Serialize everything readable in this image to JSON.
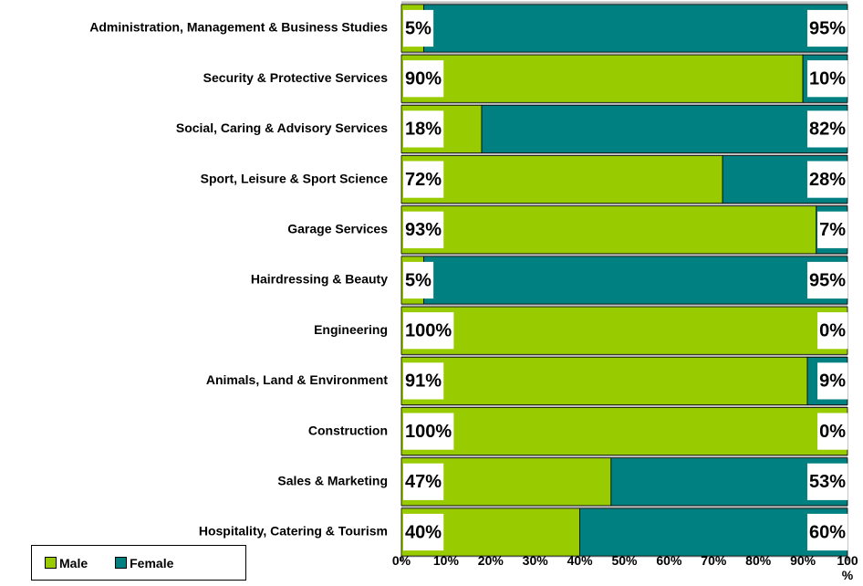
{
  "chart_data": {
    "type": "stacked-bar-horizontal",
    "categories": [
      "Administration, Management  & Business Studies",
      "Security & Protective Services",
      "Social, Caring & Advisory Services",
      "Sport, Leisure & Sport Science",
      "Garage Services",
      "Hairdressing & Beauty",
      "Engineering",
      "Animals, Land & Environment",
      "Construction",
      "Sales & Marketing",
      "Hospitality, Catering & Tourism"
    ],
    "series": [
      {
        "name": "Male",
        "color": "#99cc00",
        "values": [
          5,
          90,
          18,
          72,
          93,
          5,
          100,
          91,
          100,
          47,
          40
        ],
        "value_labels": [
          "5%",
          "90%",
          "18%",
          "72%",
          "93%",
          "5%",
          "100%",
          "91%",
          "100%",
          "47%",
          "40%"
        ]
      },
      {
        "name": "Female",
        "color": "#008080",
        "values": [
          95,
          10,
          82,
          28,
          7,
          95,
          0,
          9,
          0,
          53,
          60
        ],
        "value_labels": [
          "95%",
          "10%",
          "82%",
          "28%",
          "7%",
          "95%",
          "0%",
          "9%",
          "0%",
          "53%",
          "60%"
        ]
      }
    ],
    "xlim": [
      0,
      100
    ],
    "xticks": [
      {
        "value": 0,
        "label": "0%"
      },
      {
        "value": 10,
        "label": "10%"
      },
      {
        "value": 20,
        "label": "20%"
      },
      {
        "value": 30,
        "label": "30%"
      },
      {
        "value": 40,
        "label": "40%"
      },
      {
        "value": 50,
        "label": "50%"
      },
      {
        "value": 60,
        "label": "60%"
      },
      {
        "value": 70,
        "label": "70%"
      },
      {
        "value": 80,
        "label": "80%"
      },
      {
        "value": 90,
        "label": "90%"
      },
      {
        "value": 100,
        "label": "100%"
      }
    ],
    "legend": "bottom-left"
  }
}
